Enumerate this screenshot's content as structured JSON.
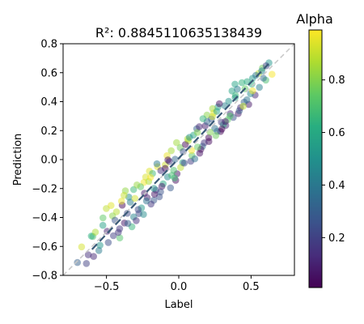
{
  "chart_data": {
    "type": "scatter",
    "title": "R²: 0.8845110635138439",
    "xlabel": "Label",
    "ylabel": "Prediction",
    "xlim": [
      -0.8,
      0.8
    ],
    "ylim": [
      -0.8,
      0.8
    ],
    "x_ticks": [
      "−0.5",
      "0.0",
      "0.5"
    ],
    "y_ticks": [
      "−0.8",
      "−0.6",
      "−0.4",
      "−0.2",
      "0.0",
      "0.2",
      "0.4",
      "0.6",
      "0.8"
    ],
    "colorbar": {
      "label": "Alpha",
      "colormap": "viridis",
      "range": [
        0.01,
        0.99
      ],
      "ticks": [
        "0.2",
        "0.4",
        "0.6",
        "0.8"
      ]
    },
    "reference_line": {
      "style": "dashed",
      "color": "#c8c8c8",
      "from": [
        -0.8,
        -0.8
      ],
      "to": [
        0.8,
        0.8
      ]
    },
    "fit_line": {
      "style": "dashed",
      "color": "#3a5a78",
      "from": [
        -0.6,
        -0.62
      ],
      "to": [
        0.62,
        0.66
      ]
    },
    "point_opacity": 0.5,
    "points": [
      {
        "x": -0.701,
        "y": -0.711,
        "a": 0.303
      },
      {
        "x": -0.501,
        "y": -0.338,
        "a": 0.892
      },
      {
        "x": 0.356,
        "y": 0.317,
        "a": 0.137
      },
      {
        "x": 0.027,
        "y": -0.021,
        "a": 0.565
      },
      {
        "x": 0.195,
        "y": 0.307,
        "a": 0.812
      },
      {
        "x": -0.276,
        "y": -0.373,
        "a": 0.224
      },
      {
        "x": 0.506,
        "y": 0.522,
        "a": 0.623
      },
      {
        "x": 0.411,
        "y": 0.318,
        "a": 0.084
      },
      {
        "x": -0.203,
        "y": -0.08,
        "a": 0.941
      },
      {
        "x": -0.078,
        "y": -0.12,
        "a": 0.467
      },
      {
        "x": 0.249,
        "y": 0.216,
        "a": 0.372
      },
      {
        "x": -0.409,
        "y": -0.478,
        "a": 0.163
      },
      {
        "x": 0.145,
        "y": 0.044,
        "a": 0.058
      },
      {
        "x": -0.594,
        "y": -0.531,
        "a": 0.706
      },
      {
        "x": 0.624,
        "y": 0.668,
        "a": 0.515
      },
      {
        "x": 0.066,
        "y": 0.13,
        "a": 0.875
      },
      {
        "x": -0.335,
        "y": -0.294,
        "a": 0.418
      },
      {
        "x": 0.289,
        "y": 0.194,
        "a": 0.029
      },
      {
        "x": -0.126,
        "y": -0.223,
        "a": 0.258
      },
      {
        "x": 0.458,
        "y": 0.489,
        "a": 0.744
      },
      {
        "x": -0.241,
        "y": -0.158,
        "a": 0.972
      },
      {
        "x": 0.102,
        "y": 0.169,
        "a": 0.589
      },
      {
        "x": -0.452,
        "y": -0.526,
        "a": 0.191
      },
      {
        "x": 0.325,
        "y": 0.236,
        "a": 0.11
      },
      {
        "x": -0.025,
        "y": 0.002,
        "a": 0.337
      },
      {
        "x": 0.553,
        "y": 0.596,
        "a": 0.902
      },
      {
        "x": -0.369,
        "y": -0.216,
        "a": 0.823
      },
      {
        "x": 0.208,
        "y": 0.125,
        "a": 0.046
      },
      {
        "x": -0.173,
        "y": -0.281,
        "a": 0.287
      },
      {
        "x": 0.392,
        "y": 0.443,
        "a": 0.666
      },
      {
        "x": -0.626,
        "y": -0.658,
        "a": 0.141
      },
      {
        "x": 0.01,
        "y": 0.083,
        "a": 0.778
      },
      {
        "x": -0.312,
        "y": -0.396,
        "a": 0.452
      },
      {
        "x": 0.484,
        "y": 0.381,
        "a": 0.072
      },
      {
        "x": -0.093,
        "y": -0.036,
        "a": 0.915
      },
      {
        "x": 0.271,
        "y": 0.363,
        "a": 0.547
      },
      {
        "x": -0.487,
        "y": -0.573,
        "a": 0.238
      },
      {
        "x": 0.164,
        "y": 0.091,
        "a": 0.349
      },
      {
        "x": -0.218,
        "y": -0.263,
        "a": 0.093
      },
      {
        "x": 0.602,
        "y": 0.549,
        "a": 0.695
      },
      {
        "x": -0.052,
        "y": 0.061,
        "a": 0.856
      },
      {
        "x": 0.345,
        "y": 0.403,
        "a": 0.508
      },
      {
        "x": -0.391,
        "y": -0.315,
        "a": 0.022
      },
      {
        "x": 0.083,
        "y": -0.012,
        "a": 0.183
      },
      {
        "x": -0.147,
        "y": -0.049,
        "a": 0.961
      },
      {
        "x": 0.437,
        "y": 0.531,
        "a": 0.639
      },
      {
        "x": -0.553,
        "y": -0.628,
        "a": 0.411
      },
      {
        "x": 0.226,
        "y": 0.28,
        "a": 0.274
      },
      {
        "x": -0.264,
        "y": -0.188,
        "a": 0.731
      },
      {
        "x": 0.528,
        "y": 0.446,
        "a": 0.118
      },
      {
        "x": -0.012,
        "y": -0.098,
        "a": 0.057
      },
      {
        "x": 0.308,
        "y": 0.241,
        "a": 0.597
      },
      {
        "x": -0.431,
        "y": -0.361,
        "a": 0.883
      },
      {
        "x": 0.124,
        "y": 0.213,
        "a": 0.322
      },
      {
        "x": -0.192,
        "y": -0.307,
        "a": 0.161
      },
      {
        "x": 0.579,
        "y": 0.633,
        "a": 0.769
      },
      {
        "x": -0.345,
        "y": -0.259,
        "a": 0.483
      },
      {
        "x": 0.046,
        "y": 0.104,
        "a": 0.036
      },
      {
        "x": -0.672,
        "y": -0.603,
        "a": 0.926
      },
      {
        "x": 0.377,
        "y": 0.291,
        "a": 0.255
      },
      {
        "x": -0.108,
        "y": -0.167,
        "a": 0.612
      },
      {
        "x": 0.234,
        "y": 0.352,
        "a": 0.844
      },
      {
        "x": -0.294,
        "y": -0.422,
        "a": 0.149
      },
      {
        "x": 0.471,
        "y": 0.413,
        "a": 0.388
      },
      {
        "x": -0.035,
        "y": -0.074,
        "a": 0.704
      },
      {
        "x": 0.183,
        "y": 0.233,
        "a": 0.091
      },
      {
        "x": -0.525,
        "y": -0.454,
        "a": 0.559
      },
      {
        "x": 0.645,
        "y": 0.589,
        "a": 0.981
      },
      {
        "x": -0.158,
        "y": -0.211,
        "a": 0.213
      },
      {
        "x": 0.318,
        "y": 0.372,
        "a": 0.427
      },
      {
        "x": -0.376,
        "y": -0.438,
        "a": 0.069
      },
      {
        "x": 0.091,
        "y": 0.028,
        "a": 0.751
      },
      {
        "x": -0.229,
        "y": -0.121,
        "a": 0.934
      },
      {
        "x": 0.419,
        "y": 0.338,
        "a": 0.298
      },
      {
        "x": -0.065,
        "y": -0.013,
        "a": 0.172
      },
      {
        "x": 0.51,
        "y": 0.561,
        "a": 0.533
      },
      {
        "x": -0.458,
        "y": -0.389,
        "a": 0.816
      },
      {
        "x": 0.153,
        "y": 0.071,
        "a": 0.049
      },
      {
        "x": -0.312,
        "y": -0.207,
        "a": 0.661
      },
      {
        "x": 0.266,
        "y": 0.195,
        "a": 0.365
      },
      {
        "x": -0.589,
        "y": -0.669,
        "a": 0.124
      },
      {
        "x": 0.013,
        "y": -0.054,
        "a": 0.894
      },
      {
        "x": 0.368,
        "y": 0.474,
        "a": 0.582
      },
      {
        "x": -0.134,
        "y": -0.257,
        "a": 0.244
      },
      {
        "x": 0.207,
        "y": 0.151,
        "a": 0.019
      },
      {
        "x": -0.408,
        "y": -0.541,
        "a": 0.718
      },
      {
        "x": 0.558,
        "y": 0.499,
        "a": 0.433
      },
      {
        "x": -0.081,
        "y": 0.027,
        "a": 0.961
      },
      {
        "x": 0.295,
        "y": 0.258,
        "a": 0.186
      },
      {
        "x": -0.258,
        "y": -0.334,
        "a": 0.535
      },
      {
        "x": 0.129,
        "y": 0.188,
        "a": 0.802
      },
      {
        "x": -0.495,
        "y": -0.495,
        "a": 0.097
      },
      {
        "x": 0.452,
        "y": 0.397,
        "a": 0.315
      },
      {
        "x": -0.181,
        "y": -0.096,
        "a": 0.676
      },
      {
        "x": 0.061,
        "y": 0.142,
        "a": 0.869
      },
      {
        "x": -0.356,
        "y": -0.371,
        "a": 0.229
      },
      {
        "x": 0.389,
        "y": 0.521,
        "a": 0.574
      },
      {
        "x": -0.021,
        "y": -0.143,
        "a": 0.042
      },
      {
        "x": 0.241,
        "y": 0.322,
        "a": 0.948
      },
      {
        "x": -0.223,
        "y": -0.286,
        "a": 0.379
      },
      {
        "x": -0.605,
        "y": -0.528,
        "a": 0.625
      },
      {
        "x": 0.176,
        "y": 0.116,
        "a": 0.153
      },
      {
        "x": -0.289,
        "y": -0.175,
        "a": 0.832
      },
      {
        "x": 0.496,
        "y": 0.455,
        "a": 0.469
      },
      {
        "x": -0.117,
        "y": -0.185,
        "a": 0.078
      },
      {
        "x": 0.338,
        "y": 0.275,
        "a": 0.728
      },
      {
        "x": -0.441,
        "y": -0.419,
        "a": 0.267
      },
      {
        "x": 0.089,
        "y": 0.064,
        "a": 0.983
      },
      {
        "x": -0.151,
        "y": -0.029,
        "a": 0.401
      },
      {
        "x": 0.604,
        "y": 0.648,
        "a": 0.204
      },
      {
        "x": -0.049,
        "y": -0.109,
        "a": 0.687
      },
      {
        "x": 0.281,
        "y": 0.386,
        "a": 0.051
      },
      {
        "x": -0.379,
        "y": -0.247,
        "a": 0.906
      },
      {
        "x": 0.196,
        "y": 0.262,
        "a": 0.333
      },
      {
        "x": -0.545,
        "y": -0.592,
        "a": 0.522
      },
      {
        "x": 0.427,
        "y": 0.359,
        "a": 0.133
      },
      {
        "x": -0.208,
        "y": -0.151,
        "a": 0.859
      },
      {
        "x": 0.031,
        "y": 0.055,
        "a": 0.259
      },
      {
        "x": -0.324,
        "y": -0.464,
        "a": 0.651
      },
      {
        "x": 0.533,
        "y": 0.582,
        "a": 0.391
      },
      {
        "x": -0.094,
        "y": -0.061,
        "a": 0.026
      },
      {
        "x": 0.256,
        "y": 0.166,
        "a": 0.766
      },
      {
        "x": -0.468,
        "y": -0.317,
        "a": 0.944
      },
      {
        "x": 0.142,
        "y": 0.227,
        "a": 0.115
      },
      {
        "x": -0.244,
        "y": -0.379,
        "a": 0.478
      },
      {
        "x": 0.354,
        "y": 0.301,
        "a": 0.711
      },
      {
        "x": -0.015,
        "y": 0.117,
        "a": 0.845
      },
      {
        "x": -0.639,
        "y": -0.718,
        "a": 0.198
      },
      {
        "x": 0.473,
        "y": 0.538,
        "a": 0.604
      },
      {
        "x": -0.168,
        "y": -0.239,
        "a": 0.064
      },
      {
        "x": 0.111,
        "y": 0.005,
        "a": 0.372
      },
      {
        "x": -0.303,
        "y": -0.268,
        "a": 0.924
      },
      {
        "x": 0.39,
        "y": 0.428,
        "a": 0.542
      },
      {
        "x": -0.057,
        "y": -0.195,
        "a": 0.281
      },
      {
        "x": 0.217,
        "y": 0.189,
        "a": 0.793
      },
      {
        "x": -0.418,
        "y": -0.503,
        "a": 0.167
      },
      {
        "x": 0.574,
        "y": 0.612,
        "a": 0.439
      },
      {
        "x": -0.195,
        "y": -0.123,
        "a": 0.988
      },
      {
        "x": 0.322,
        "y": 0.263,
        "a": 0.086
      },
      {
        "x": -0.524,
        "y": -0.403,
        "a": 0.741
      },
      {
        "x": 0.074,
        "y": 0.154,
        "a": 0.497
      },
      {
        "x": -0.281,
        "y": -0.345,
        "a": 0.235
      },
      {
        "x": 0.446,
        "y": 0.368,
        "a": 0.893
      },
      {
        "x": -0.075,
        "y": -0.002,
        "a": 0.038
      },
      {
        "x": 0.167,
        "y": 0.282,
        "a": 0.644
      },
      {
        "x": -0.352,
        "y": -0.441,
        "a": 0.308
      },
      {
        "x": 0.511,
        "y": 0.475,
        "a": 0.974
      },
      {
        "x": -0.124,
        "y": -0.076,
        "a": 0.146
      },
      {
        "x": 0.263,
        "y": 0.333,
        "a": 0.583
      },
      {
        "x": -0.577,
        "y": -0.501,
        "a": 0.866
      },
      {
        "x": 0.038,
        "y": -0.024,
        "a": 0.214
      },
      {
        "x": 0.405,
        "y": 0.486,
        "a": 0.424
      },
      {
        "x": -0.237,
        "y": -0.233,
        "a": 0.081
      },
      {
        "x": 0.13,
        "y": 0.086,
        "a": 0.755
      },
      {
        "x": -0.396,
        "y": -0.287,
        "a": 0.959
      },
      {
        "x": 0.585,
        "y": 0.562,
        "a": 0.352
      },
      {
        "x": -0.029,
        "y": -0.127,
        "a": 0.672
      },
      {
        "x": 0.298,
        "y": 0.211,
        "a": 0.012
      },
      {
        "x": -0.172,
        "y": -0.199,
        "a": 0.517
      },
      {
        "x": 0.233,
        "y": 0.297,
        "a": 0.909
      }
    ]
  }
}
